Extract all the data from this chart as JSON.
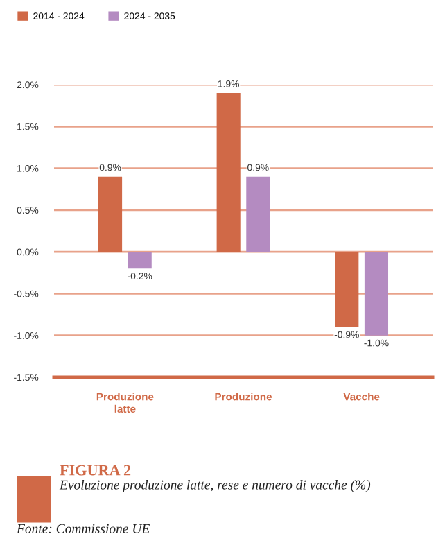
{
  "chart_data": {
    "type": "bar",
    "title": "FIGURA 2",
    "subtitle": "Evoluzione produzione latte, rese e numero di vacche (%)",
    "annotations": [
      "Fonte: Commissione UE"
    ],
    "categories": [
      "Produzione latte",
      "Produzione",
      "Vacche"
    ],
    "series": [
      {
        "name": "2014 - 2024",
        "color": "#d06947",
        "values": [
          0.9,
          1.9,
          -0.9
        ],
        "value_labels": [
          "0.9%",
          "1.9%",
          "-0.9%"
        ]
      },
      {
        "name": "2024 - 2035",
        "color": "#b48bc1",
        "values": [
          -0.2,
          0.9,
          -1.0
        ],
        "value_labels": [
          "-0.2%",
          "0.9%",
          "-1.0%"
        ]
      }
    ],
    "ylim": [
      -1.5,
      2.0
    ],
    "yticks": [
      {
        "value": -1.5,
        "label": "-1.5%"
      },
      {
        "value": -1.0,
        "label": "-1.0%"
      },
      {
        "value": -0.5,
        "label": "-0.5%"
      },
      {
        "value": 0.0,
        "label": "0.0%"
      },
      {
        "value": 0.5,
        "label": "0.5%"
      },
      {
        "value": 1.0,
        "label": "1.0%"
      },
      {
        "value": 1.5,
        "label": "1.5%"
      },
      {
        "value": 2.0,
        "label": "2.0%"
      }
    ],
    "grid": "y",
    "legend": "top left"
  }
}
